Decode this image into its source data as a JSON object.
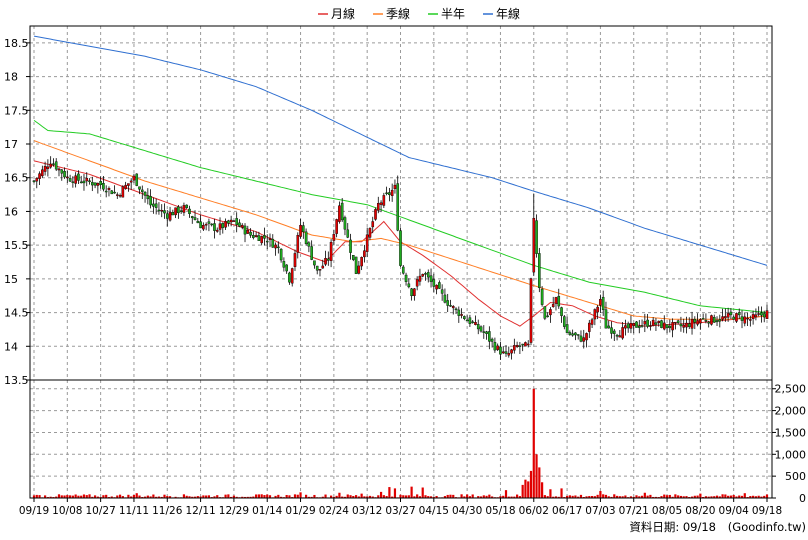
{
  "legend": [
    {
      "label": "月線",
      "color": "#e03030"
    },
    {
      "label": "季線",
      "color": "#ff7f27"
    },
    {
      "label": "半年",
      "color": "#22cc22"
    },
    {
      "label": "年線",
      "color": "#2f6fd0"
    }
  ],
  "footer": {
    "date_text": "資料日期: 09/18",
    "source_text": "(Goodinfo.tw)"
  },
  "colors": {
    "up": "#e00000",
    "down": "#1faa1f",
    "volume": "#e00000",
    "grid": "#9a9a9a",
    "frame": "#000000"
  },
  "chart_data": [
    {
      "type": "candlestick",
      "y_ticks": [
        13.5,
        14,
        14.5,
        15,
        15.5,
        16,
        16.5,
        17,
        17.5,
        18,
        18.5
      ],
      "ylim": [
        13.5,
        18.75
      ],
      "x_ticks": [
        "09/19",
        "10/08",
        "10/27",
        "11/11",
        "11/26",
        "12/11",
        "12/29",
        "01/14",
        "01/29",
        "02/24",
        "03/12",
        "03/27",
        "04/15",
        "04/30",
        "05/18",
        "06/02",
        "06/17",
        "07/03",
        "07/21",
        "08/05",
        "08/20",
        "09/04",
        "09/18"
      ],
      "x_tick_index": [
        0,
        12,
        24,
        36,
        48,
        60,
        72,
        84,
        96,
        108,
        120,
        132,
        144,
        156,
        168,
        180,
        192,
        204,
        216,
        228,
        240,
        252,
        264
      ],
      "n_points": 265,
      "close_anchors": [
        [
          0,
          16.45
        ],
        [
          6,
          16.75
        ],
        [
          12,
          16.5
        ],
        [
          24,
          16.4
        ],
        [
          30,
          16.25
        ],
        [
          36,
          16.5
        ],
        [
          42,
          16.1
        ],
        [
          48,
          15.95
        ],
        [
          54,
          16.05
        ],
        [
          60,
          15.8
        ],
        [
          66,
          15.75
        ],
        [
          72,
          15.85
        ],
        [
          78,
          15.65
        ],
        [
          84,
          15.6
        ],
        [
          88,
          15.45
        ],
        [
          92,
          15.0
        ],
        [
          96,
          15.8
        ],
        [
          102,
          15.1
        ],
        [
          106,
          15.3
        ],
        [
          110,
          16.1
        ],
        [
          116,
          15.1
        ],
        [
          120,
          15.6
        ],
        [
          124,
          16.1
        ],
        [
          130,
          16.35
        ],
        [
          132,
          15.2
        ],
        [
          136,
          14.8
        ],
        [
          140,
          15.1
        ],
        [
          144,
          14.9
        ],
        [
          150,
          14.6
        ],
        [
          156,
          14.4
        ],
        [
          162,
          14.2
        ],
        [
          166,
          14.0
        ],
        [
          170,
          13.85
        ],
        [
          174,
          14.0
        ],
        [
          178,
          14.0
        ],
        [
          180,
          15.9
        ],
        [
          182,
          14.9
        ],
        [
          184,
          14.4
        ],
        [
          188,
          14.7
        ],
        [
          192,
          14.2
        ],
        [
          198,
          14.1
        ],
        [
          204,
          14.7
        ],
        [
          206,
          14.3
        ],
        [
          210,
          14.2
        ],
        [
          216,
          14.3
        ],
        [
          222,
          14.35
        ],
        [
          228,
          14.3
        ],
        [
          234,
          14.3
        ],
        [
          240,
          14.4
        ],
        [
          246,
          14.4
        ],
        [
          252,
          14.45
        ],
        [
          258,
          14.4
        ],
        [
          264,
          14.5
        ]
      ],
      "ma_series": [
        {
          "name": "月線",
          "color": "#e03030",
          "anchors": [
            [
              0,
              16.75
            ],
            [
              20,
              16.55
            ],
            [
              40,
              16.25
            ],
            [
              60,
              15.95
            ],
            [
              80,
              15.7
            ],
            [
              95,
              15.4
            ],
            [
              105,
              15.25
            ],
            [
              112,
              15.55
            ],
            [
              118,
              15.55
            ],
            [
              126,
              15.85
            ],
            [
              132,
              15.55
            ],
            [
              140,
              15.35
            ],
            [
              150,
              15.05
            ],
            [
              160,
              14.7
            ],
            [
              168,
              14.45
            ],
            [
              175,
              14.3
            ],
            [
              180,
              14.45
            ],
            [
              186,
              14.65
            ],
            [
              194,
              14.6
            ],
            [
              202,
              14.45
            ],
            [
              210,
              14.35
            ],
            [
              220,
              14.3
            ],
            [
              240,
              14.35
            ],
            [
              264,
              14.45
            ]
          ]
        },
        {
          "name": "季線",
          "color": "#ff7f27",
          "anchors": [
            [
              0,
              17.05
            ],
            [
              20,
              16.75
            ],
            [
              40,
              16.45
            ],
            [
              60,
              16.2
            ],
            [
              80,
              15.95
            ],
            [
              100,
              15.65
            ],
            [
              115,
              15.55
            ],
            [
              125,
              15.6
            ],
            [
              135,
              15.5
            ],
            [
              150,
              15.3
            ],
            [
              165,
              15.1
            ],
            [
              180,
              14.9
            ],
            [
              192,
              14.75
            ],
            [
              204,
              14.6
            ],
            [
              216,
              14.45
            ],
            [
              230,
              14.4
            ],
            [
              250,
              14.4
            ],
            [
              264,
              14.45
            ]
          ]
        },
        {
          "name": "半年",
          "color": "#22cc22",
          "anchors": [
            [
              0,
              17.35
            ],
            [
              5,
              17.2
            ],
            [
              20,
              17.15
            ],
            [
              40,
              16.9
            ],
            [
              60,
              16.65
            ],
            [
              80,
              16.45
            ],
            [
              100,
              16.25
            ],
            [
              120,
              16.1
            ],
            [
              140,
              15.8
            ],
            [
              160,
              15.5
            ],
            [
              180,
              15.2
            ],
            [
              200,
              14.95
            ],
            [
              220,
              14.8
            ],
            [
              240,
              14.6
            ],
            [
              264,
              14.5
            ]
          ]
        },
        {
          "name": "年線",
          "color": "#2f6fd0",
          "anchors": [
            [
              0,
              18.6
            ],
            [
              20,
              18.45
            ],
            [
              40,
              18.3
            ],
            [
              60,
              18.1
            ],
            [
              80,
              17.85
            ],
            [
              100,
              17.5
            ],
            [
              120,
              17.1
            ],
            [
              135,
              16.8
            ],
            [
              150,
              16.65
            ],
            [
              165,
              16.5
            ],
            [
              180,
              16.3
            ],
            [
              200,
              16.05
            ],
            [
              220,
              15.75
            ],
            [
              240,
              15.5
            ],
            [
              264,
              15.2
            ]
          ]
        }
      ]
    },
    {
      "type": "bar",
      "name": "volume",
      "y_ticks": [
        0,
        500,
        1000,
        1500,
        2000,
        2500
      ],
      "y_tick_labels": [
        "0",
        "500",
        "1,000",
        "1,500",
        "2,000",
        "2,500"
      ],
      "ylim": [
        0,
        2700
      ],
      "base_level": 45,
      "spikes": [
        [
          0,
          60
        ],
        [
          37,
          110
        ],
        [
          96,
          130
        ],
        [
          110,
          120
        ],
        [
          118,
          100
        ],
        [
          125,
          140
        ],
        [
          128,
          250
        ],
        [
          130,
          220
        ],
        [
          136,
          260
        ],
        [
          140,
          240
        ],
        [
          170,
          180
        ],
        [
          176,
          300
        ],
        [
          177,
          420
        ],
        [
          178,
          380
        ],
        [
          179,
          620
        ],
        [
          180,
          2500
        ],
        [
          181,
          1000
        ],
        [
          182,
          700
        ],
        [
          183,
          360
        ],
        [
          186,
          200
        ],
        [
          190,
          220
        ],
        [
          204,
          160
        ],
        [
          220,
          120
        ],
        [
          240,
          100
        ],
        [
          256,
          110
        ],
        [
          264,
          80
        ]
      ]
    }
  ]
}
